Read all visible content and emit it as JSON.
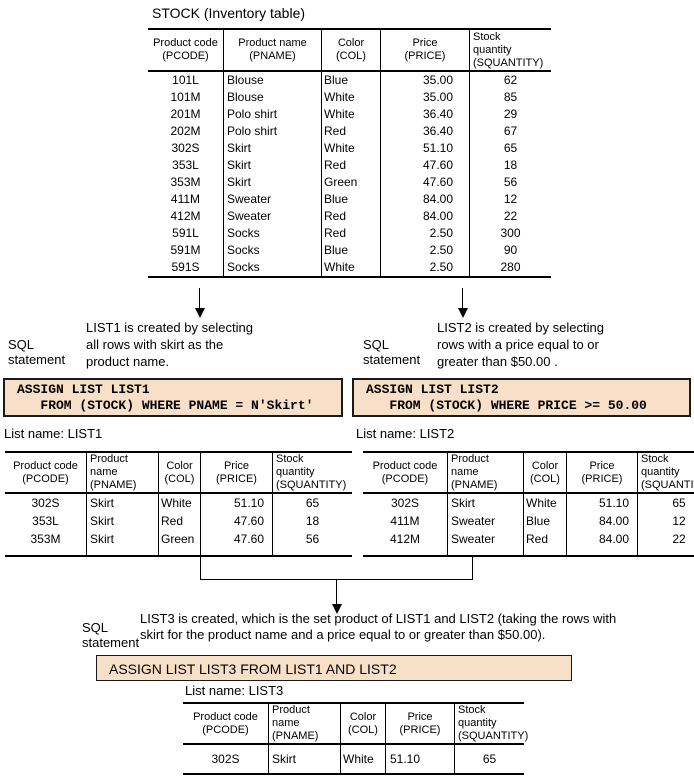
{
  "page": {
    "title": "STOCK (Inventory table)"
  },
  "colors": {
    "sql_box_bg": "#f8dfc8",
    "line": "#000000"
  },
  "stock_table": {
    "columns": [
      [
        "Product code",
        "(PCODE)"
      ],
      [
        "Product name",
        "(PNAME)"
      ],
      [
        "Color",
        "(COL)"
      ],
      [
        "Price",
        "(PRICE)"
      ],
      [
        "Stock",
        "quantity",
        "(SQUANTITY)"
      ]
    ],
    "rows": [
      [
        "101L",
        "Blouse",
        "Blue",
        "35.00",
        "62"
      ],
      [
        "101M",
        "Blouse",
        "White",
        "35.00",
        "85"
      ],
      [
        "201M",
        "Polo shirt",
        "White",
        "36.40",
        "29"
      ],
      [
        "202M",
        "Polo shirt",
        "Red",
        "36.40",
        "67"
      ],
      [
        "302S",
        "Skirt",
        "White",
        "51.10",
        "65"
      ],
      [
        "353L",
        "Skirt",
        "Red",
        "47.60",
        "18"
      ],
      [
        "353M",
        "Skirt",
        "Green",
        "47.60",
        "56"
      ],
      [
        "411M",
        "Sweater",
        "Blue",
        "84.00",
        "12"
      ],
      [
        "412M",
        "Sweater",
        "Red",
        "84.00",
        "22"
      ],
      [
        "591L",
        "Socks",
        "Red",
        "2.50",
        "300"
      ],
      [
        "591M",
        "Socks",
        "Blue",
        "2.50",
        "90"
      ],
      [
        "591S",
        "Socks",
        "White",
        "2.50",
        "280"
      ]
    ]
  },
  "branch_left": {
    "sql_label": [
      "SQL",
      "statement"
    ],
    "description": [
      "LIST1 is created by selecting",
      "all rows with skirt as the",
      "product name."
    ],
    "sql": [
      "ASSIGN LIST LIST1",
      "   FROM (STOCK) WHERE PNAME = N'Skirt'"
    ],
    "list_label": "List name: LIST1"
  },
  "branch_right": {
    "sql_label": [
      "SQL",
      "statement"
    ],
    "description": [
      "LIST2 is created by selecting",
      "rows with a price equal to or",
      "greater than $50.00 ."
    ],
    "sql": [
      "ASSIGN LIST LIST2",
      "   FROM (STOCK) WHERE PRICE >= 50.00"
    ],
    "list_label": "List name: LIST2"
  },
  "list1_table": {
    "columns": [
      [
        "Product code",
        "(PCODE)"
      ],
      [
        "Product",
        "name",
        "(PNAME)"
      ],
      [
        "Color",
        "(COL)"
      ],
      [
        "Price",
        "(PRICE)"
      ],
      [
        "Stock",
        "quantity",
        "(SQUANTITY)"
      ]
    ],
    "rows": [
      [
        "302S",
        "Skirt",
        "White",
        "51.10",
        "65"
      ],
      [
        "353L",
        "Skirt",
        "Red",
        "47.60",
        "18"
      ],
      [
        "353M",
        "Skirt",
        "Green",
        "47.60",
        "56"
      ]
    ]
  },
  "list2_table": {
    "columns": [
      [
        "Product code",
        "(PCODE)"
      ],
      [
        "Product",
        "name",
        "(PNAME)"
      ],
      [
        "Color",
        "(COL)"
      ],
      [
        "Price",
        "(PRICE)"
      ],
      [
        "Stock",
        "quantity",
        "(SQUANTITY)"
      ]
    ],
    "rows": [
      [
        "302S",
        "Skirt",
        "White",
        "51.10",
        "65"
      ],
      [
        "411M",
        "Sweater",
        "Blue",
        "84.00",
        "12"
      ],
      [
        "412M",
        "Sweater",
        "Red",
        "84.00",
        "22"
      ]
    ]
  },
  "merge": {
    "sql_label": [
      "SQL",
      "statement"
    ],
    "description": [
      "LIST3 is created, which is the set product of LIST1 and LIST2 (taking the rows with",
      "skirt for the product name and a price equal to or greater than $50.00)."
    ],
    "sql": [
      "ASSIGN LIST LIST3 FROM LIST1 AND LIST2"
    ],
    "list_label": "List name: LIST3"
  },
  "list3_table": {
    "columns": [
      [
        "Product code",
        "(PCODE)"
      ],
      [
        "Product",
        "name",
        "(PNAME)"
      ],
      [
        "Color",
        "(COL)"
      ],
      [
        "Price",
        "(PRICE)"
      ],
      [
        "Stock",
        "quantity",
        "(SQUANTITY)"
      ]
    ],
    "rows": [
      [
        "302S",
        "Skirt",
        "White",
        "51.10",
        "65"
      ]
    ]
  }
}
